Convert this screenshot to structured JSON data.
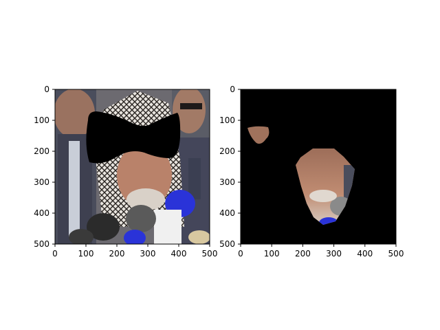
{
  "figure": {
    "panels": [
      {
        "name": "left",
        "image": "photo-with-black-bowtie-mask",
        "x_ticks": [
          "0",
          "100",
          "200",
          "300",
          "400",
          "500"
        ],
        "y_ticks": [
          "0",
          "100",
          "200",
          "300",
          "400",
          "500"
        ]
      },
      {
        "name": "right",
        "image": "face-crop-on-black",
        "x_ticks": [
          "0",
          "100",
          "200",
          "300",
          "400",
          "500"
        ],
        "y_ticks": [
          "0",
          "100",
          "200",
          "300",
          "400",
          "500"
        ]
      }
    ],
    "colors": {
      "background": "#ffffff",
      "mask": "#000000",
      "skin": "#b9826a",
      "suit": "#4a4d5c",
      "mic_blue": "#2a33d8"
    }
  }
}
